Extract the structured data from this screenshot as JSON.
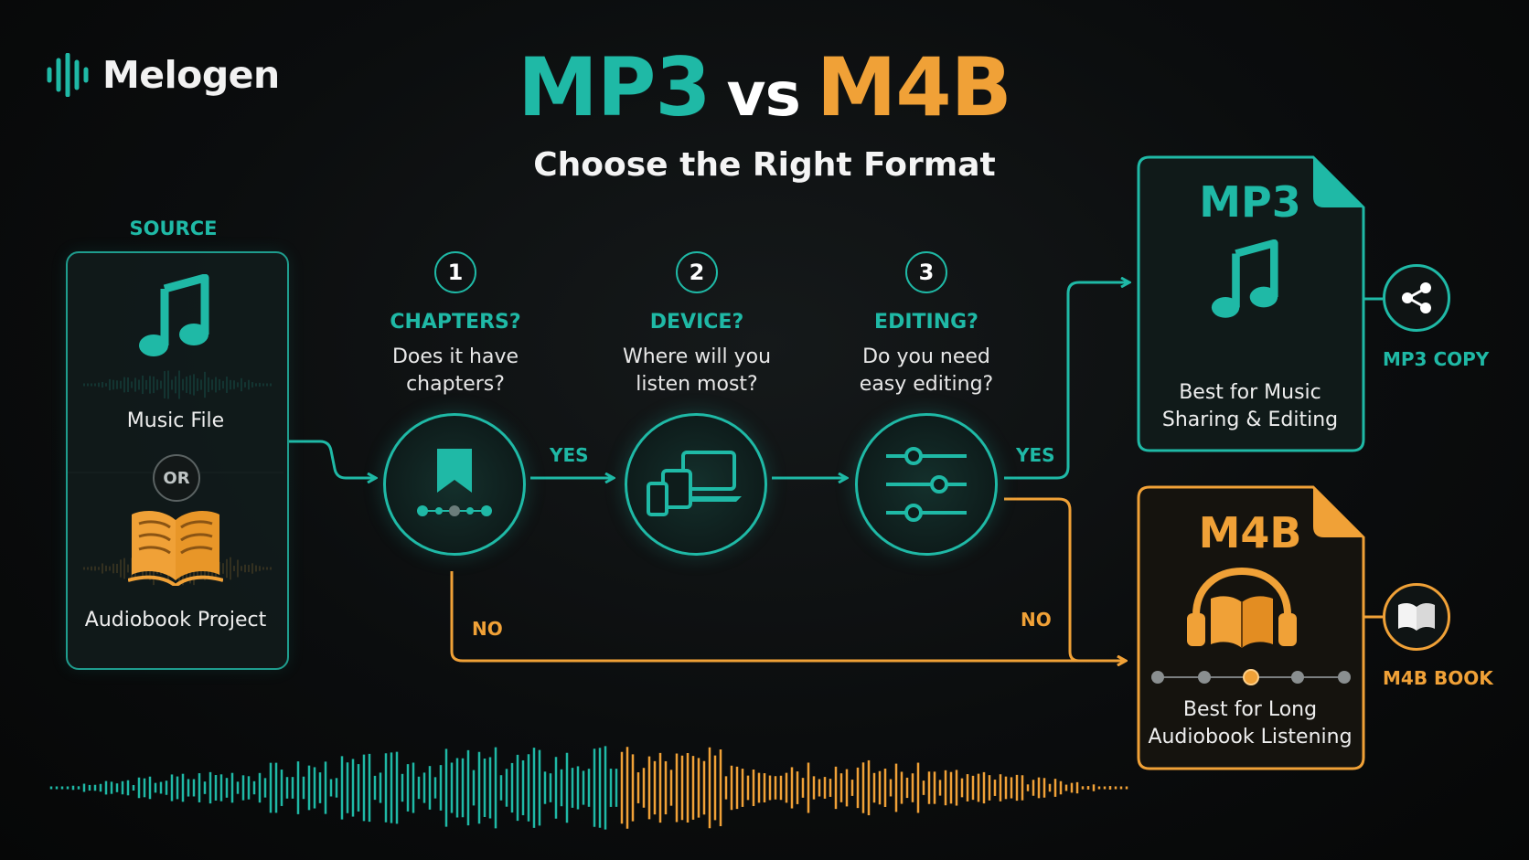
{
  "brand": {
    "name": "Melogen",
    "logo_icon": "waveform-logo-icon"
  },
  "title": {
    "left": "MP3",
    "middle": "vs",
    "right": "M4B",
    "subtitle": "Choose the Right Format"
  },
  "colors": {
    "teal": "#1fb9a6",
    "orange": "#f0a137",
    "background": "#0b0d0e"
  },
  "source": {
    "label": "SOURCE",
    "option_a": {
      "label": "Music File",
      "icon": "music-note-icon"
    },
    "separator": "OR",
    "option_b": {
      "label": "Audiobook Project",
      "icon": "open-book-icon"
    }
  },
  "steps": [
    {
      "number": "1",
      "title": "CHAPTERS?",
      "question_line1": "Does it have",
      "question_line2": "chapters?",
      "icon": "bookmark-chapters-icon"
    },
    {
      "number": "2",
      "title": "DEVICE?",
      "question_line1": "Where will you",
      "question_line2": "listen most?",
      "icon": "devices-icon"
    },
    {
      "number": "3",
      "title": "EDITING?",
      "question_line1": "Do you need",
      "question_line2": "easy editing?",
      "icon": "sliders-icon"
    }
  ],
  "branches": {
    "yes_1": "YES",
    "yes_3": "YES",
    "no_1": "NO",
    "no_3": "NO"
  },
  "results": {
    "mp3": {
      "format": "MP3",
      "line1": "Best for Music",
      "line2": "Sharing & Editing",
      "icon": "music-note-icon",
      "output_label": "MP3 COPY",
      "output_icon": "share-icon"
    },
    "m4b": {
      "format": "M4B",
      "line1": "Best for Long",
      "line2": "Audiobook Listening",
      "icon": "headphones-book-icon",
      "output_label": "M4B BOOK",
      "output_icon": "book-icon"
    }
  }
}
